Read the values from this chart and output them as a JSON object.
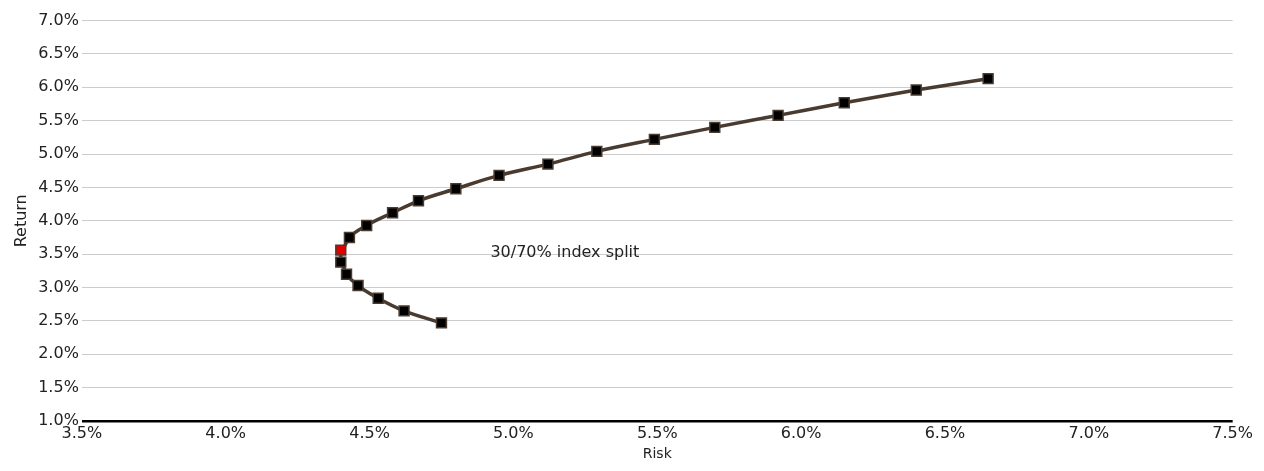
{
  "chart_data": {
    "type": "line",
    "xlabel": "Risk",
    "ylabel": "Return",
    "series": [
      {
        "color": "#4a3b30",
        "colors": [
          "#000000",
          "#000000",
          "#000000",
          "#000000",
          "#000000",
          "#000000",
          "#e00000",
          "#000000",
          "#000000",
          "#000000",
          "#000000",
          "#000000",
          "#000000",
          "#000000",
          "#000000",
          "#000000",
          "#000000",
          "#000000",
          "#000000",
          "#000000",
          "#000000"
        ],
        "x": [
          4.75,
          4.62,
          4.53,
          4.46,
          4.42,
          4.4,
          4.4,
          4.43,
          4.49,
          4.58,
          4.67,
          4.8,
          4.95,
          5.12,
          5.29,
          5.49,
          5.7,
          5.92,
          6.15,
          6.4,
          6.65
        ],
        "values": [
          2.47,
          2.65,
          2.84,
          3.03,
          3.2,
          3.38,
          3.56,
          3.75,
          3.93,
          4.12,
          4.3,
          4.48,
          4.68,
          4.85,
          5.04,
          5.22,
          5.4,
          5.58,
          5.77,
          5.96,
          6.13
        ]
      }
    ],
    "xlim": [
      3.5,
      7.5
    ],
    "xticks": [
      {
        "value": 3.5,
        "label": "3.5%"
      },
      {
        "value": 4,
        "label": "4.0%"
      },
      {
        "value": 4.5,
        "label": "4.5%"
      },
      {
        "value": 5,
        "label": "5.0%"
      },
      {
        "value": 5.5,
        "label": "5.5%"
      },
      {
        "value": 6,
        "label": "6.0%"
      },
      {
        "value": 6.5,
        "label": "6.5%"
      },
      {
        "value": 7,
        "label": "7.0%"
      },
      {
        "value": 7.5,
        "label": "7.5%"
      }
    ],
    "ylim": [
      1,
      7
    ],
    "yticks": [
      {
        "value": 1,
        "label": "1.0%"
      },
      {
        "value": 1.5,
        "label": "1.5%"
      },
      {
        "value": 2,
        "label": "2.0%"
      },
      {
        "value": 2.5,
        "label": "2.5%"
      },
      {
        "value": 3,
        "label": "3.0%"
      },
      {
        "value": 3.5,
        "label": "3.5%"
      },
      {
        "value": 4,
        "label": "4.0%"
      },
      {
        "value": 4.5,
        "label": "4.5%"
      },
      {
        "value": 5,
        "label": "5.0%"
      },
      {
        "value": 5.5,
        "label": "5.5%"
      },
      {
        "value": 6,
        "label": "6.0%"
      },
      {
        "value": 6.5,
        "label": "6.5%"
      },
      {
        "value": 7,
        "label": "7.0%"
      }
    ],
    "grid": "y",
    "marker": "square",
    "line_style": "solid",
    "legend": false,
    "annotations": [
      "30/70% index split"
    ]
  }
}
